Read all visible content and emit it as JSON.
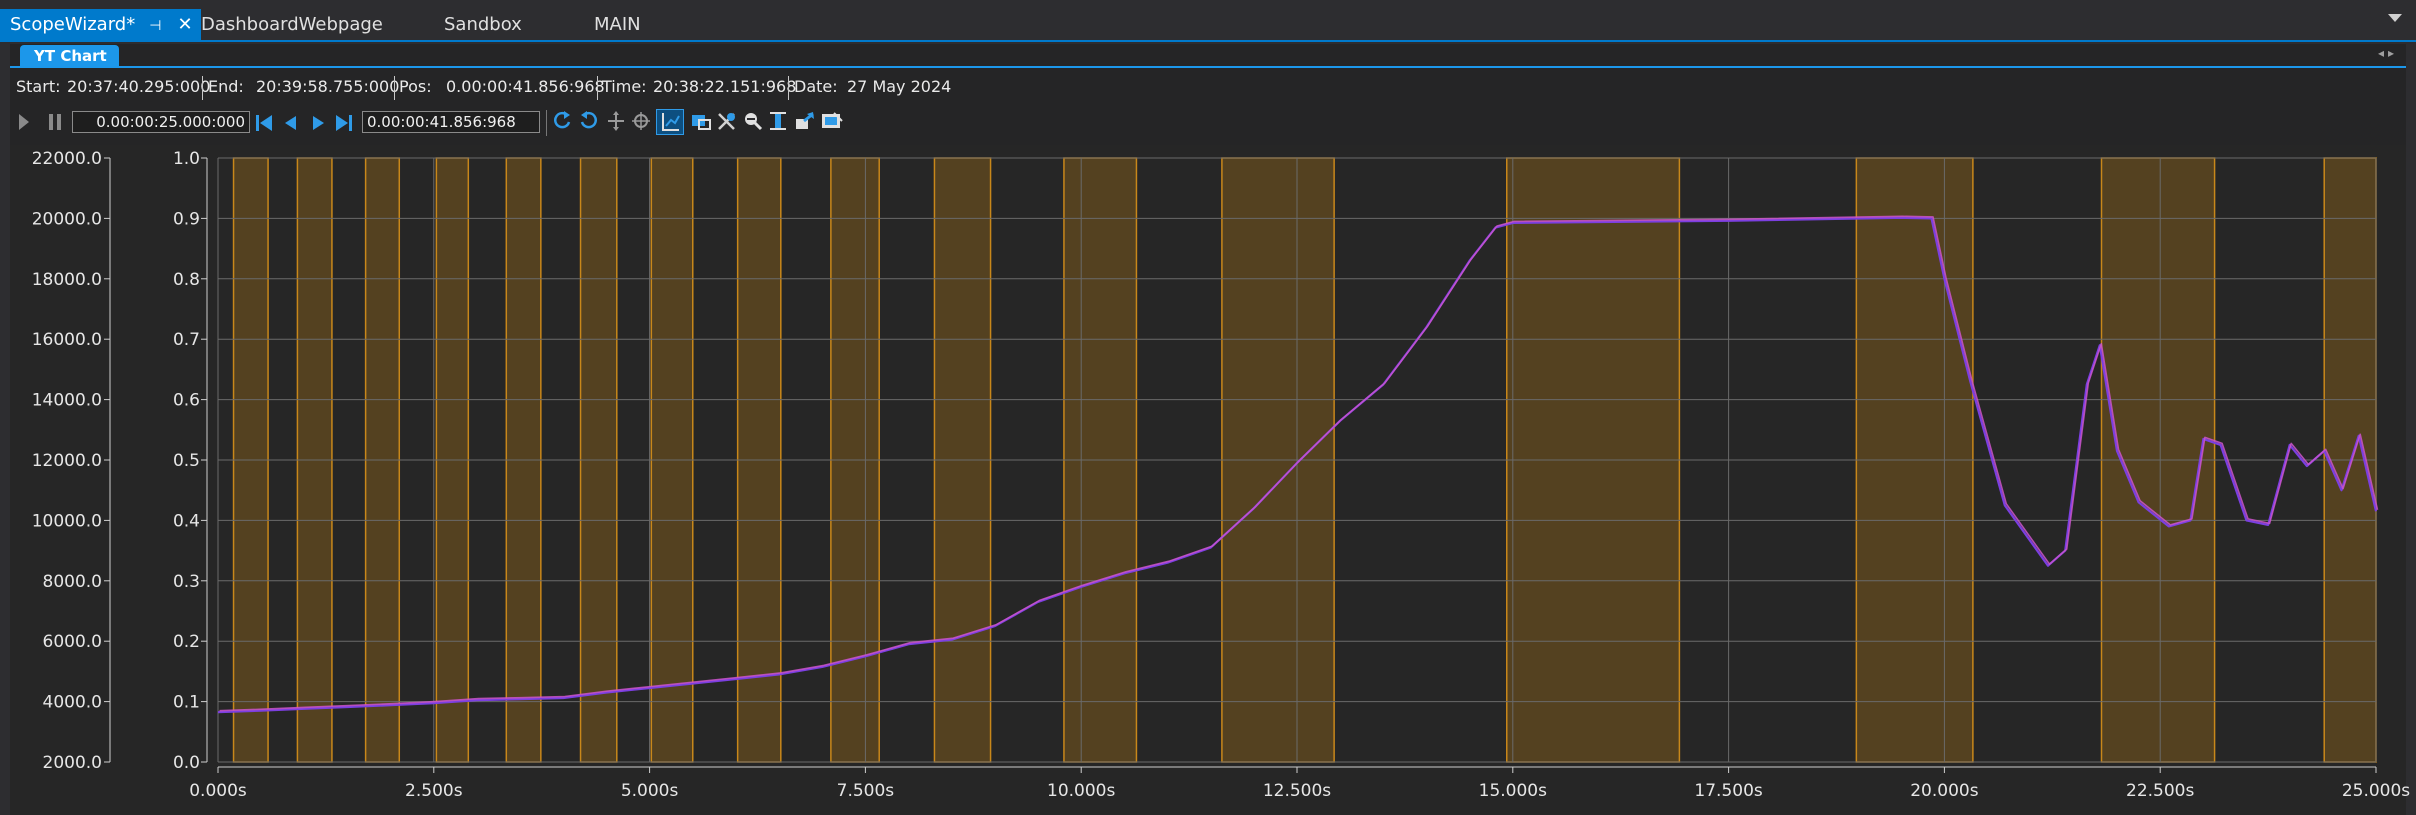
{
  "tabs": [
    {
      "label": "ScopeWizard*",
      "active": true
    },
    {
      "label": "DashboardWebpage",
      "active": false
    },
    {
      "label": "Sandbox",
      "active": false
    },
    {
      "label": "MAIN",
      "active": false
    }
  ],
  "subtab": {
    "label": "YT Chart"
  },
  "info": {
    "start_label": "Start:",
    "start_value": "20:37:40.295:000",
    "end_label": "End:",
    "end_value": "20:39:58.755:000",
    "pos_label": "Pos:",
    "pos_value": "0.00:00:41.856:968",
    "time_label": "Time:",
    "time_value": "20:38:22.151:968",
    "date_label": "Date:",
    "date_value": "27 May 2024"
  },
  "toolbar": {
    "range_value": "0.00:00:25.000:000",
    "position_value": "0.00:00:41.856:968"
  },
  "colors": {
    "accent": "#007acc",
    "grid": "#6a6a6a",
    "bands_fill": "#5a4520",
    "bands_edge": "#c8871a",
    "series_1": "#7b3fe0",
    "series_2": "#cc55cc"
  },
  "chart_data": {
    "type": "line",
    "x_unit": "s",
    "xlim": [
      0,
      25
    ],
    "x_ticks": [
      "0.000s",
      "2.500s",
      "5.000s",
      "7.500s",
      "10.000s",
      "12.500s",
      "15.000s",
      "17.500s",
      "20.000s",
      "22.500s",
      "25.000s"
    ],
    "y_left_ticks": [
      "22000.0",
      "20000.0",
      "18000.0",
      "16000.0",
      "14000.0",
      "12000.0",
      "10000.0",
      "8000.0",
      "6000.0",
      "4000.0",
      "2000.0"
    ],
    "y_left_lim": [
      2000,
      22000
    ],
    "y_right_ticks": [
      "1.0",
      "0.9",
      "0.8",
      "0.7",
      "0.6",
      "0.5",
      "0.4",
      "0.3",
      "0.2",
      "0.1",
      "0.0"
    ],
    "y_right_lim": [
      0,
      1
    ],
    "grid": true,
    "highlight_intervals_s": [
      [
        0.18,
        0.58
      ],
      [
        0.92,
        1.32
      ],
      [
        1.71,
        2.1
      ],
      [
        2.53,
        2.9
      ],
      [
        3.34,
        3.74
      ],
      [
        4.2,
        4.62
      ],
      [
        5.02,
        5.5
      ],
      [
        6.02,
        6.52
      ],
      [
        7.1,
        7.66
      ],
      [
        8.3,
        8.95
      ],
      [
        9.8,
        10.64
      ],
      [
        11.63,
        12.93
      ],
      [
        14.93,
        16.93
      ],
      [
        18.98,
        20.33
      ],
      [
        21.82,
        23.13
      ],
      [
        24.4,
        25.0
      ]
    ],
    "series": [
      {
        "values_left_axis": [
          [
            0,
            3650
          ],
          [
            0.5,
            3700
          ],
          [
            1.0,
            3760
          ],
          [
            1.5,
            3820
          ],
          [
            2.0,
            3880
          ],
          [
            2.5,
            3950
          ],
          [
            3.0,
            4050
          ],
          [
            3.5,
            4080
          ],
          [
            4.0,
            4120
          ],
          [
            4.5,
            4300
          ],
          [
            5.0,
            4450
          ],
          [
            5.5,
            4600
          ],
          [
            6.0,
            4750
          ],
          [
            6.5,
            4900
          ],
          [
            7.0,
            5150
          ],
          [
            7.5,
            5500
          ],
          [
            8.0,
            5900
          ],
          [
            8.5,
            6050
          ],
          [
            9.0,
            6500
          ],
          [
            9.5,
            7300
          ],
          [
            10.0,
            7800
          ],
          [
            10.5,
            8250
          ],
          [
            11.0,
            8600
          ],
          [
            11.5,
            9100
          ],
          [
            12.0,
            10400
          ],
          [
            12.5,
            11900
          ],
          [
            13.0,
            13300
          ],
          [
            13.5,
            14500
          ],
          [
            14.0,
            16400
          ],
          [
            14.5,
            18600
          ],
          [
            14.8,
            19700
          ],
          [
            15.0,
            19850
          ],
          [
            17.5,
            19920
          ],
          [
            19.5,
            20020
          ],
          [
            19.85,
            20000
          ],
          [
            20.0,
            18000
          ],
          [
            20.3,
            14600
          ],
          [
            20.7,
            10500
          ],
          [
            21.2,
            8500
          ],
          [
            21.4,
            9000
          ],
          [
            21.65,
            14500
          ],
          [
            21.8,
            15800
          ],
          [
            22.0,
            12300
          ],
          [
            22.25,
            10600
          ],
          [
            22.6,
            9800
          ],
          [
            22.85,
            10000
          ],
          [
            23.0,
            12700
          ],
          [
            23.2,
            12500
          ],
          [
            23.5,
            10000
          ],
          [
            23.75,
            9850
          ],
          [
            24.0,
            12500
          ],
          [
            24.2,
            11800
          ],
          [
            24.4,
            12300
          ],
          [
            24.6,
            11000
          ],
          [
            24.8,
            12800
          ],
          [
            25.0,
            10300
          ]
        ]
      }
    ]
  }
}
